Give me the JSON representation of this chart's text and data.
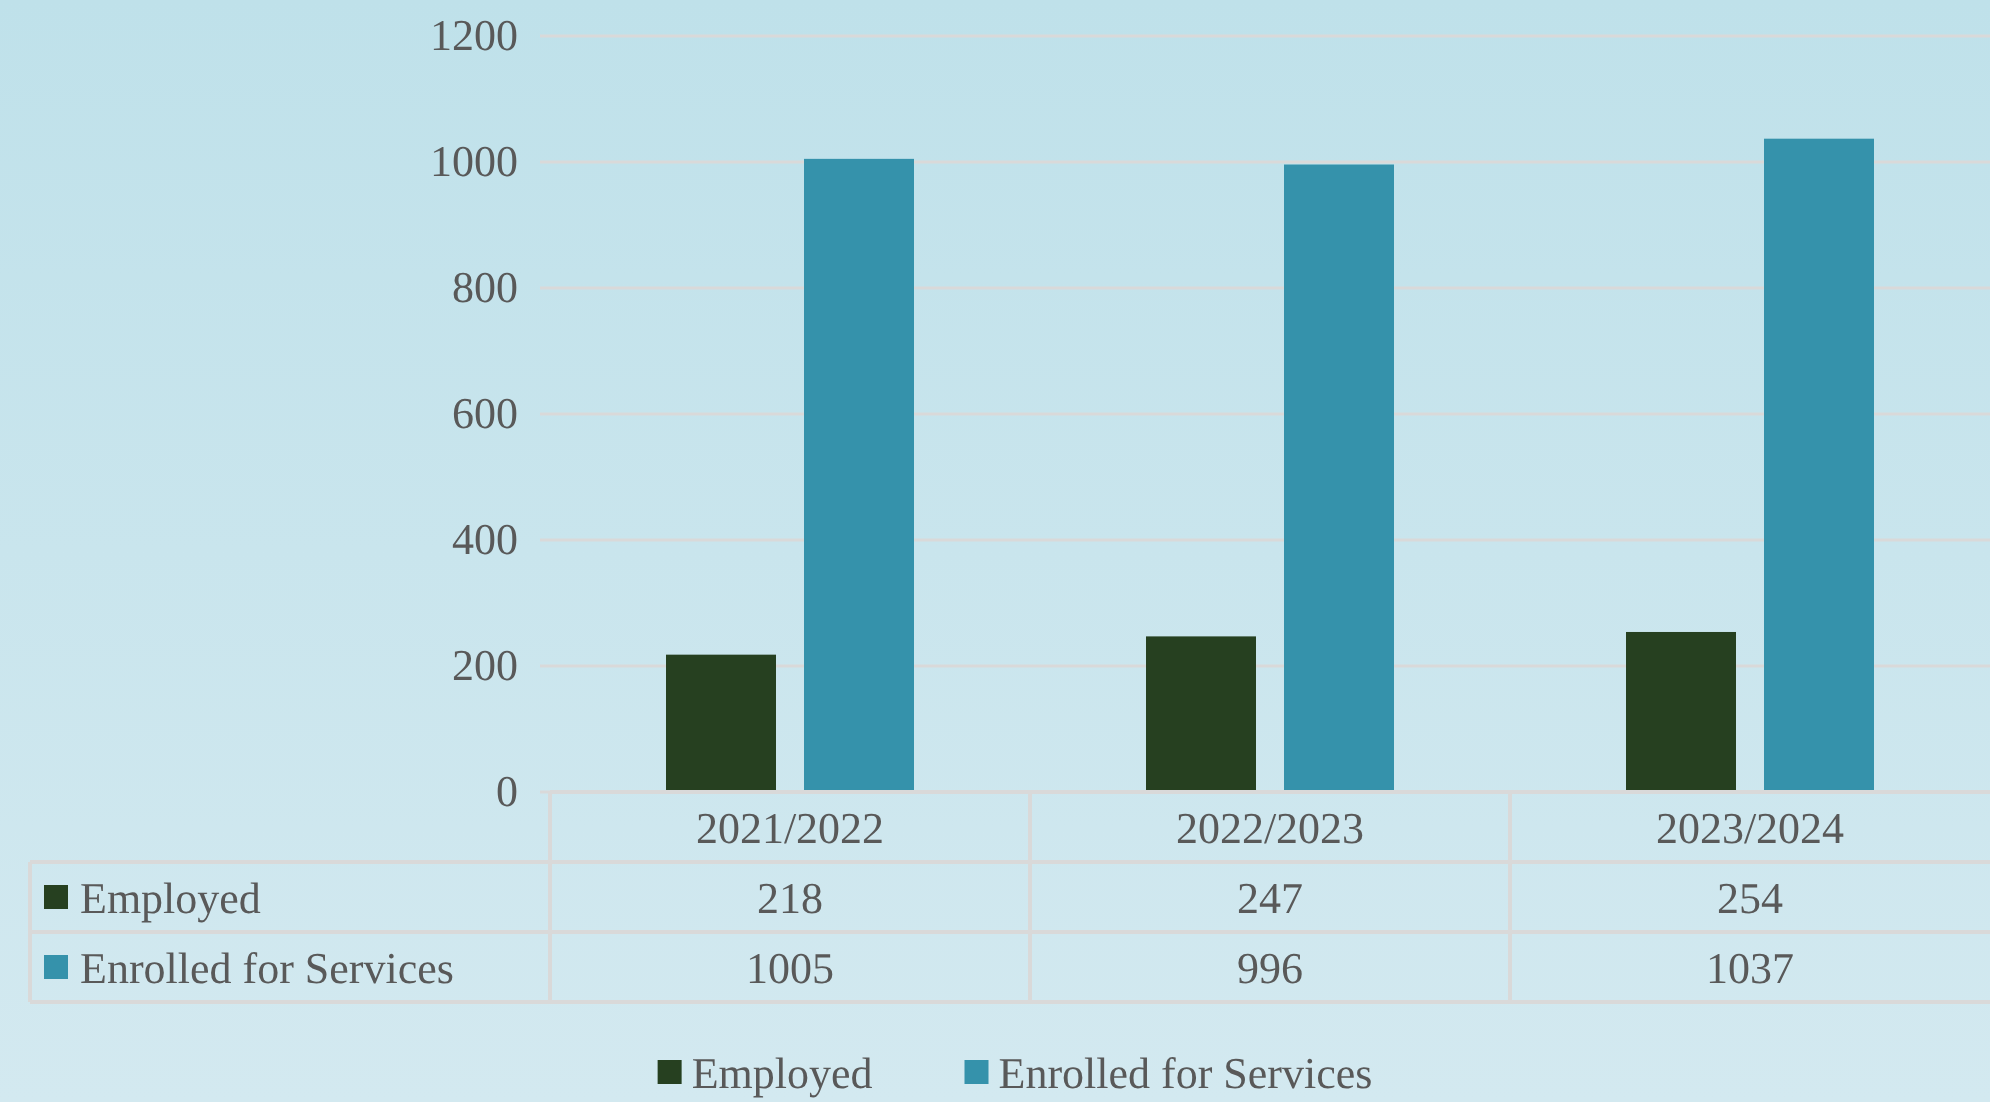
{
  "chart_data": {
    "type": "bar",
    "categories": [
      "2021/2022",
      "2022/2023",
      "2023/2024"
    ],
    "series": [
      {
        "name": "Employed",
        "color": "#264020",
        "values": [
          218,
          247,
          254
        ]
      },
      {
        "name": "Enrolled for Services",
        "color": "#3592ab",
        "values": [
          1005,
          996,
          1037
        ]
      }
    ],
    "ylim": [
      0,
      1200
    ],
    "yticks": [
      0,
      200,
      400,
      600,
      800,
      1000,
      1200
    ],
    "grid": "y",
    "legend": "bottom",
    "data_labels": true
  }
}
